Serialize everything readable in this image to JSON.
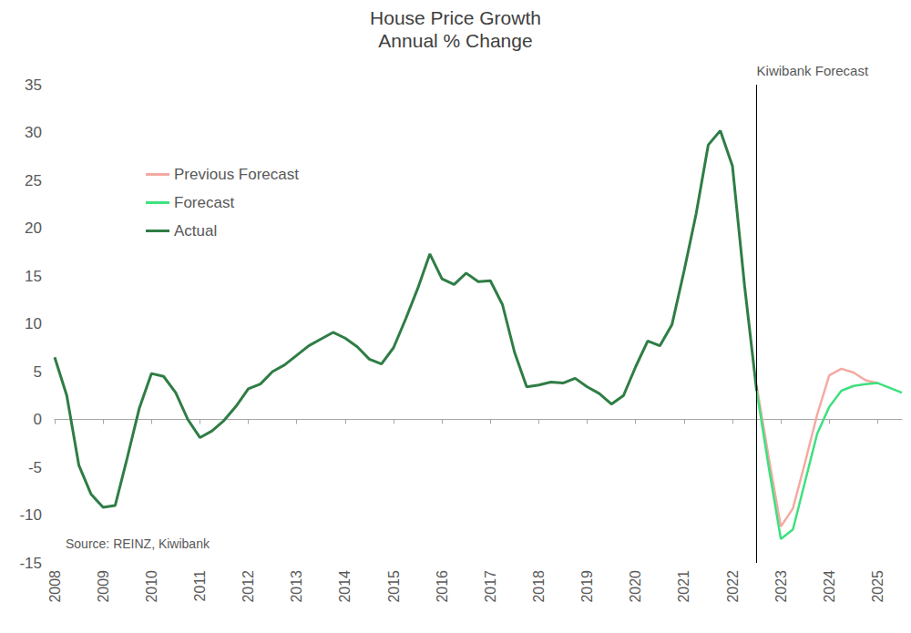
{
  "chart_data": {
    "type": "line",
    "title": "House Price Growth",
    "subtitle": "Annual % Change",
    "categories": [
      "2008",
      null,
      null,
      null,
      "2009",
      null,
      null,
      null,
      "2010",
      null,
      null,
      null,
      "2011",
      null,
      null,
      null,
      "2012",
      null,
      null,
      null,
      "2013",
      null,
      null,
      null,
      "2014",
      null,
      null,
      null,
      "2015",
      null,
      null,
      null,
      "2016",
      null,
      null,
      null,
      "2017",
      null,
      null,
      null,
      "2018",
      null,
      null,
      null,
      "2019",
      null,
      null,
      null,
      "2020",
      null,
      null,
      null,
      "2021",
      null,
      null,
      null,
      "2022",
      null,
      null,
      null,
      "2023",
      null,
      null,
      null,
      "2024",
      null,
      null,
      null,
      "2025",
      null,
      null
    ],
    "series": [
      {
        "name": "Previous Forecast",
        "color": "#f4aaa2",
        "values": [
          null,
          null,
          null,
          null,
          null,
          null,
          null,
          null,
          null,
          null,
          null,
          null,
          null,
          null,
          null,
          null,
          null,
          null,
          null,
          null,
          null,
          null,
          null,
          null,
          null,
          null,
          null,
          null,
          null,
          null,
          null,
          null,
          null,
          null,
          null,
          null,
          null,
          null,
          null,
          null,
          null,
          null,
          null,
          null,
          null,
          null,
          null,
          null,
          null,
          null,
          null,
          null,
          null,
          null,
          null,
          null,
          null,
          null,
          3.5,
          -4.0,
          -11.2,
          -9.3,
          -4.5,
          0.5,
          4.6,
          5.3,
          4.9,
          4.1,
          3.8,
          null,
          null
        ]
      },
      {
        "name": "Forecast",
        "color": "#3ee07f",
        "values": [
          null,
          null,
          null,
          null,
          null,
          null,
          null,
          null,
          null,
          null,
          null,
          null,
          null,
          null,
          null,
          null,
          null,
          null,
          null,
          null,
          null,
          null,
          null,
          null,
          null,
          null,
          null,
          null,
          null,
          null,
          null,
          null,
          null,
          null,
          null,
          null,
          null,
          null,
          null,
          null,
          null,
          null,
          null,
          null,
          null,
          null,
          null,
          null,
          null,
          null,
          null,
          null,
          null,
          null,
          null,
          null,
          null,
          null,
          3.0,
          -5.0,
          -12.5,
          -11.5,
          -6.5,
          -1.5,
          1.3,
          3.0,
          3.5,
          3.7,
          3.8,
          3.3,
          2.8
        ]
      },
      {
        "name": "Actual",
        "color": "#2f7d45",
        "values": [
          6.5,
          2.5,
          -4.8,
          -7.8,
          -9.2,
          -9.0,
          -4.0,
          1.2,
          4.8,
          4.5,
          2.8,
          0.0,
          -1.9,
          -1.2,
          -0.1,
          1.4,
          3.2,
          3.7,
          5.0,
          5.7,
          6.7,
          7.7,
          8.4,
          9.1,
          8.5,
          7.6,
          6.3,
          5.8,
          7.5,
          10.5,
          13.7,
          17.3,
          14.7,
          14.1,
          15.3,
          14.4,
          14.5,
          12.0,
          7.0,
          3.4,
          3.6,
          3.9,
          3.8,
          4.3,
          3.4,
          2.7,
          1.6,
          2.5,
          5.5,
          8.2,
          7.7,
          9.9,
          15.5,
          21.5,
          28.7,
          30.2,
          26.5,
          14.0,
          3.0,
          null,
          null,
          null,
          null,
          null,
          null,
          null,
          null,
          null,
          null,
          null,
          null
        ]
      }
    ],
    "ylim": [
      -15,
      35
    ],
    "yticks": [
      -15,
      -10,
      -5,
      0,
      5,
      10,
      15,
      20,
      25,
      30,
      35
    ],
    "grid": false,
    "legend": "upper left",
    "annotations": [
      {
        "text": "Kiwibank Forecast"
      },
      {
        "text": "Source: REINZ, Kiwibank"
      }
    ]
  }
}
